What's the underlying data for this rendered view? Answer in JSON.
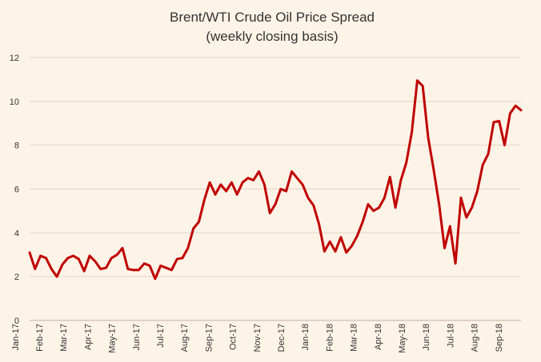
{
  "chart_data": {
    "type": "line",
    "title": "Brent/WTI Crude Oil Price Spread",
    "subtitle": "(weekly closing basis)",
    "xlabel": "",
    "ylabel": "",
    "ylim": [
      0,
      12
    ],
    "yticks": [
      0,
      2,
      4,
      6,
      8,
      10,
      12
    ],
    "grid": true,
    "legend": "none",
    "colors": {
      "background": "#fdf3e7",
      "grid": "#e3d6c6",
      "line": "#c00000"
    },
    "x_tick_labels": [
      "Jan-17",
      "Feb-17",
      "Mar-17",
      "Apr-17",
      "May-17",
      "Jun-17",
      "Jul-17",
      "Aug-17",
      "Sep-17",
      "Oct-17",
      "Nov-17",
      "Dec-17",
      "Jan-18",
      "Feb-18",
      "Mar-18",
      "Apr-18",
      "May-18",
      "Jun-18",
      "Jul-18",
      "Aug-18",
      "Sep-18"
    ],
    "series": [
      {
        "values": [
          3.1,
          2.35,
          2.95,
          2.85,
          2.35,
          2.0,
          2.55,
          2.85,
          2.95,
          2.8,
          2.25,
          2.95,
          2.7,
          2.35,
          2.4,
          2.85,
          3.0,
          3.3,
          2.35,
          2.3,
          2.3,
          2.6,
          2.5,
          1.9,
          2.5,
          2.4,
          2.3,
          2.8,
          2.85,
          3.3,
          4.2,
          4.5,
          5.5,
          6.3,
          5.75,
          6.2,
          5.9,
          6.3,
          5.75,
          6.3,
          6.5,
          6.4,
          6.8,
          6.2,
          4.9,
          5.3,
          6.0,
          5.9,
          6.8,
          6.5,
          6.2,
          5.6,
          5.25,
          4.4,
          3.15,
          3.6,
          3.15,
          3.8,
          3.1,
          3.4,
          3.85,
          4.5,
          5.3,
          5.0,
          5.15,
          5.6,
          6.55,
          5.15,
          6.4,
          7.2,
          8.6,
          10.95,
          10.7,
          8.35,
          6.9,
          5.3,
          3.3,
          4.3,
          2.6,
          5.6,
          4.7,
          5.15,
          5.9,
          7.1,
          7.6,
          9.05,
          9.1,
          8.0,
          9.45,
          9.8,
          9.6
        ]
      }
    ]
  }
}
